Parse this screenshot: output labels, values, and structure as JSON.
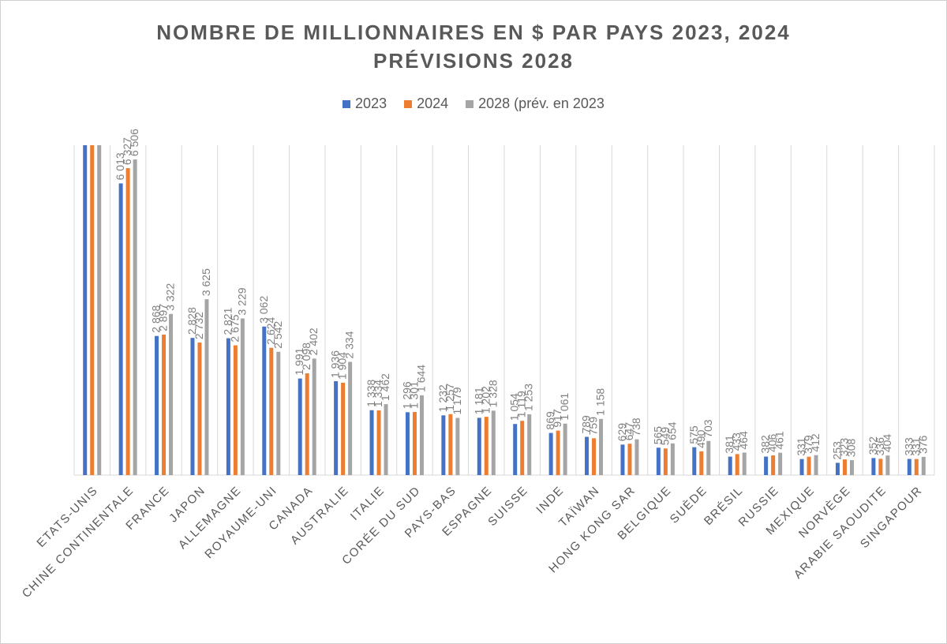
{
  "chart_data": {
    "type": "bar",
    "title_lines": [
      "NOMBRE DE MILLIONNAIRES EN $ PAR PAYS 2023, 2024",
      "PRÉVISIONS 2028"
    ],
    "xlabel": "",
    "ylabel": "",
    "categories": [
      "ETATS-UNIS",
      "CHINE CONTINENTALE",
      "FRANCE",
      "JAPON",
      "ALLEMAGNE",
      "ROYAUME-UNI",
      "CANADA",
      "AUSTRALIE",
      "ITALIE",
      "CORÉE DU SUD",
      "PAYS-BAS",
      "ESPAGNE",
      "SUISSE",
      "INDE",
      "TAÏWAN",
      "HONG KONG SAR",
      "BELGIQUE",
      "SUÈDE",
      "BRÉSIL",
      "RUSSIE",
      "MEXIQUE",
      "NORVÈGE",
      "ARABIE SAOUDITE",
      "SINGAPOUR"
    ],
    "series": [
      {
        "name": "2023",
        "color": "#4472c4",
        "values": [
          null,
          6013,
          2868,
          2828,
          2821,
          3062,
          1991,
          1936,
          1338,
          1296,
          1232,
          1181,
          1054,
          869,
          789,
          629,
          565,
          575,
          381,
          382,
          331,
          253,
          352,
          333
        ],
        "labels": [
          "",
          "6 013",
          "2 868",
          "2 828",
          "2 821",
          "3 062",
          "1 991",
          "1 936",
          "1 338",
          "1 296",
          "1 232",
          "1 181",
          "1 054",
          "869",
          "789",
          "629",
          "565",
          "575",
          "381",
          "382",
          "331",
          "253",
          "352",
          "333"
        ]
      },
      {
        "name": "2024",
        "color": "#ed7d31",
        "values": [
          null,
          6327,
          2897,
          2732,
          2675,
          2624,
          2098,
          1904,
          1334,
          1301,
          1257,
          1202,
          1119,
          917,
          759,
          647,
          549,
          490,
          433,
          406,
          379,
          323,
          336,
          331
        ],
        "labels": [
          "",
          "6 327",
          "2 897",
          "2 732",
          "2 675",
          "2 624",
          "2 098",
          "1 904",
          "1 334",
          "1 301",
          "1 257",
          "1 202",
          "1 119",
          "917",
          "759",
          "647",
          "549",
          "490",
          "433",
          "406",
          "379",
          "323",
          "336",
          "331"
        ]
      },
      {
        "name": "2028 (prév. en 2023",
        "color": "#a5a5a5",
        "values": [
          null,
          6506,
          3322,
          3625,
          3229,
          2542,
          2402,
          2334,
          1462,
          1644,
          1179,
          1328,
          1253,
          1061,
          1158,
          738,
          654,
          703,
          464,
          461,
          412,
          308,
          404,
          376
        ],
        "labels": [
          "",
          "6 506",
          "3 322",
          "3 625",
          "3 229",
          "2 542",
          "2 402",
          "2 334",
          "1 462",
          "1 644",
          "1 179",
          "1 328",
          "1 253",
          "1 061",
          "1 158",
          "738",
          "654",
          "703",
          "464",
          "461",
          "412",
          "308",
          "404",
          "376"
        ]
      }
    ],
    "ylim": [
      0,
      6800
    ],
    "gridlines": "vertical",
    "legend_position": "top"
  }
}
